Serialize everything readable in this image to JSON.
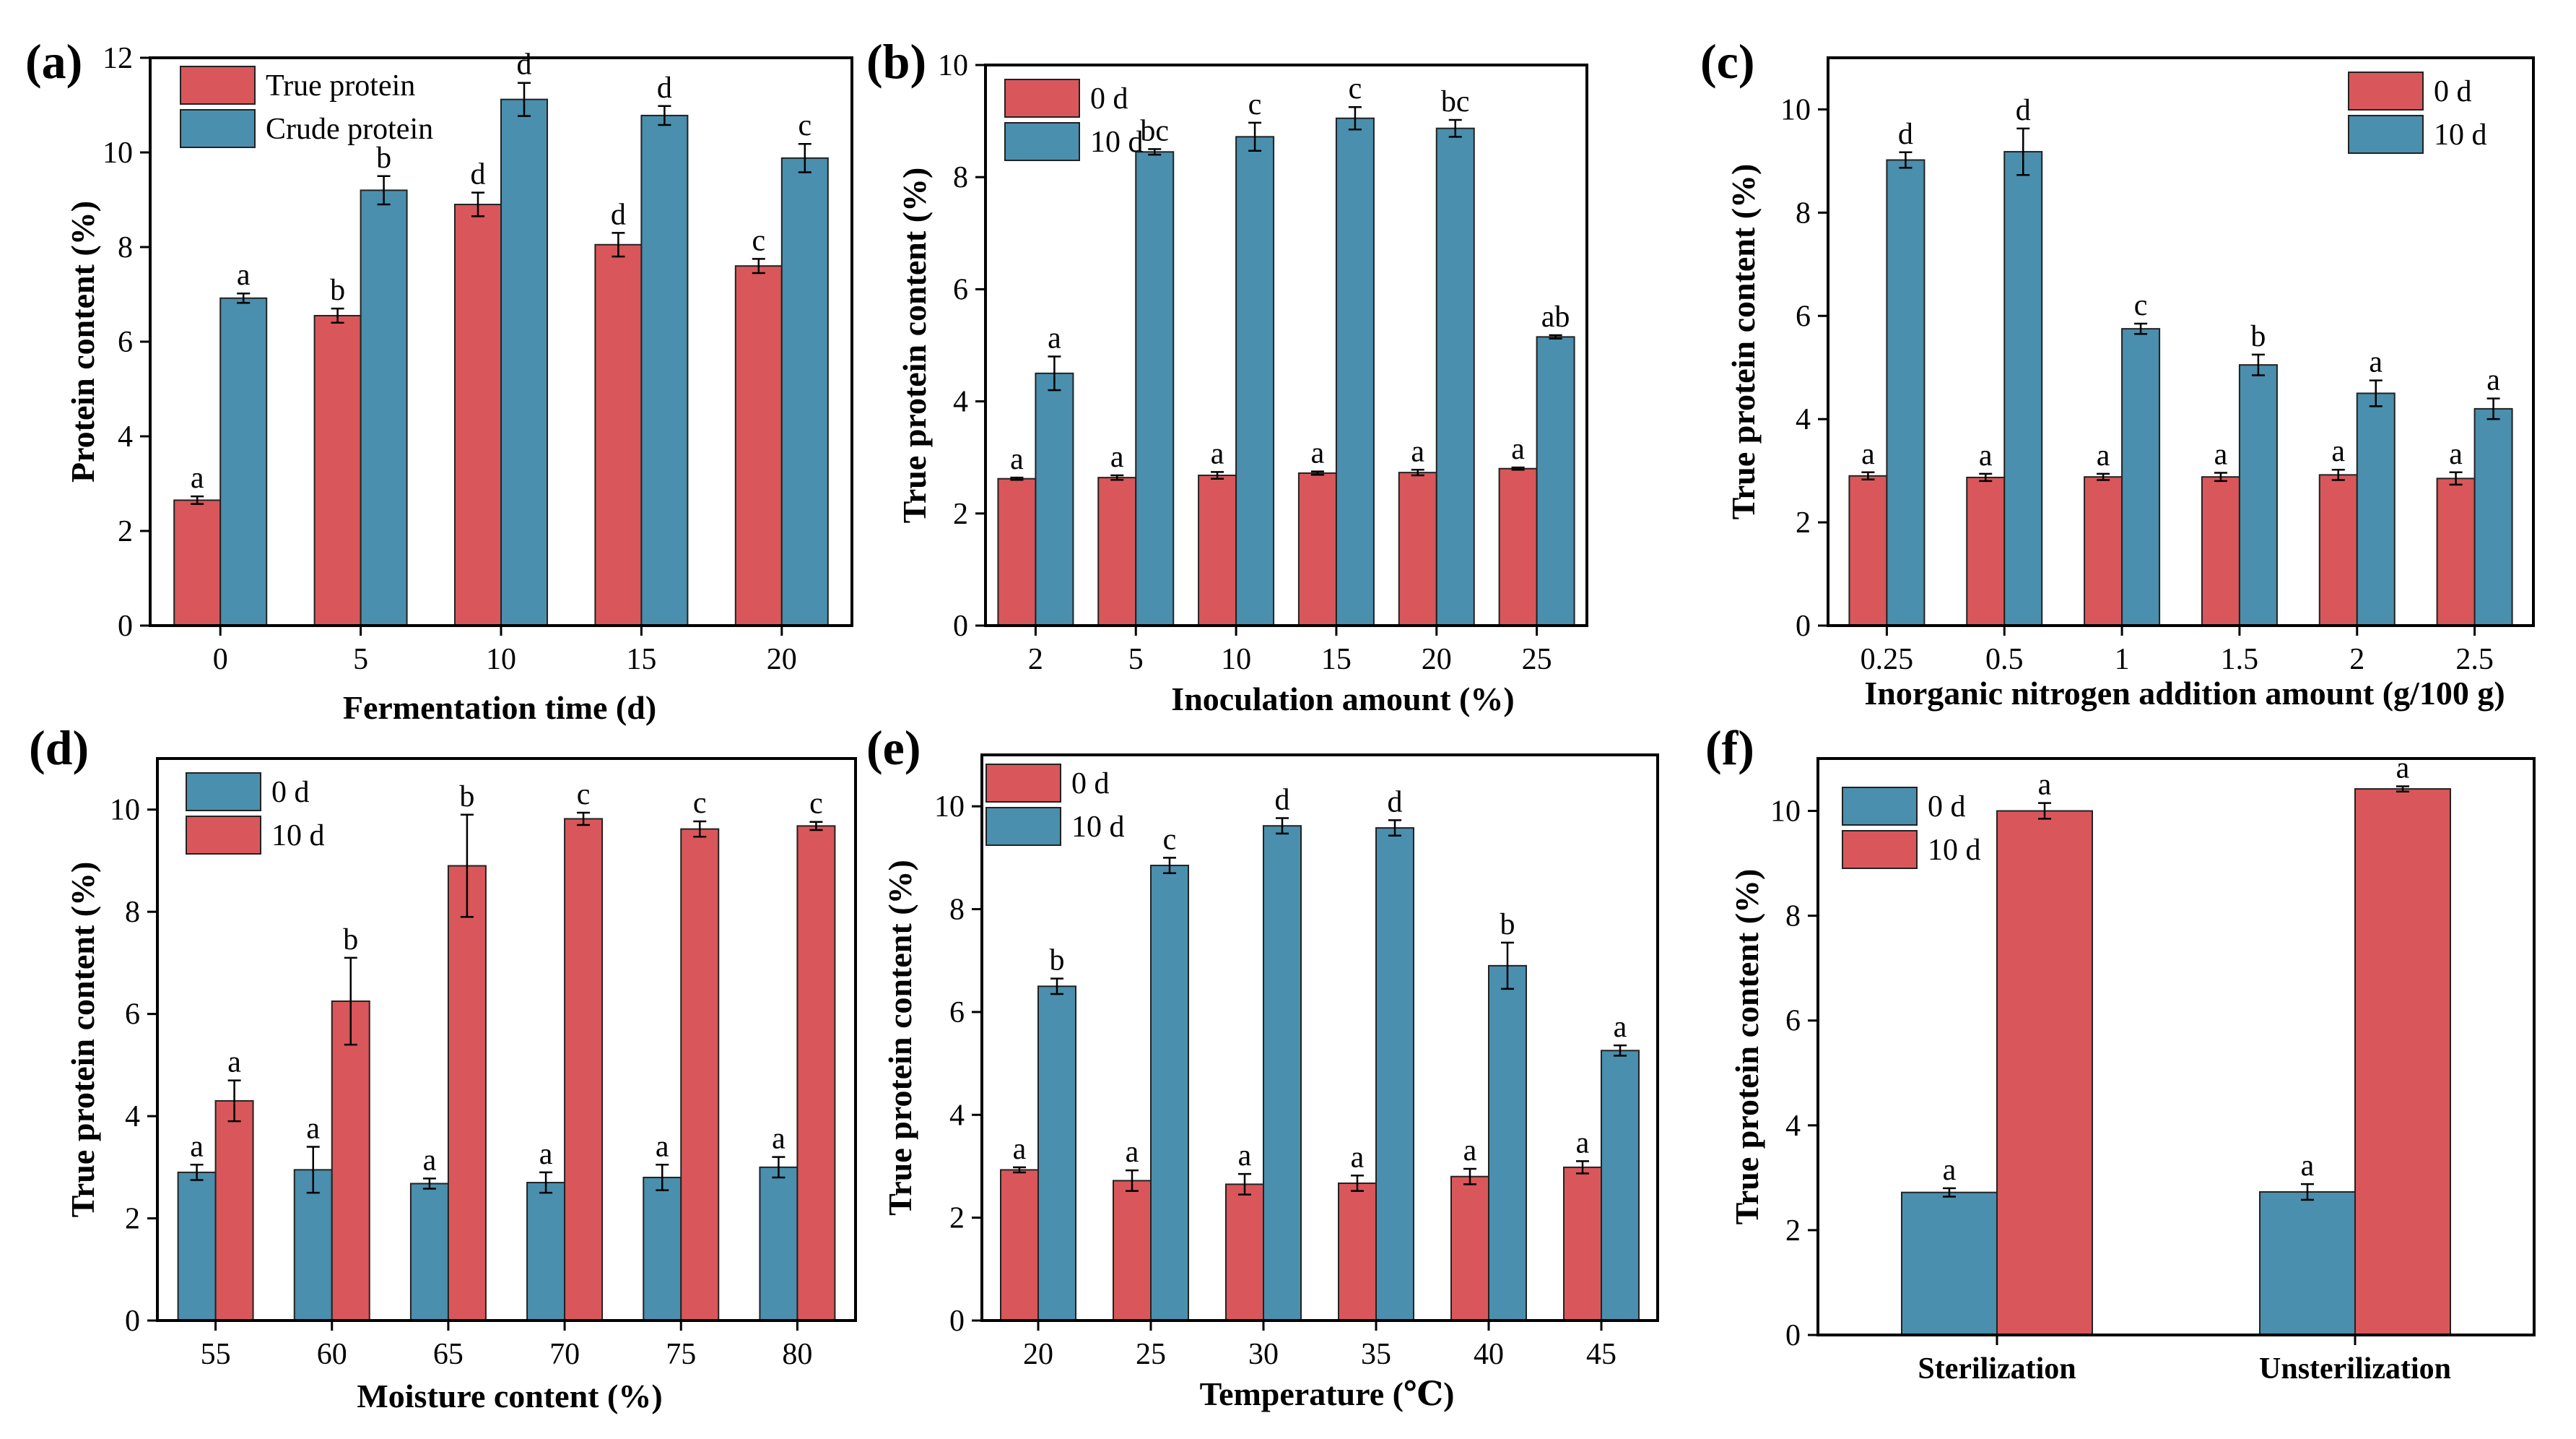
{
  "colors": {
    "red": "#d9575a",
    "blue": "#4a8fad",
    "edge": "#222222"
  },
  "chart_data": [
    {
      "panel": "(a)",
      "type": "bar",
      "xlabel": "Fermentation time (d)",
      "ylabel": "Protein content (%)",
      "ylim": [
        0,
        12
      ],
      "yticks": [
        "0",
        "2",
        "4",
        "6",
        "8",
        "10",
        "12"
      ],
      "categories": [
        "0",
        "5",
        "10",
        "15",
        "20"
      ],
      "legend_position": "top-left",
      "series": [
        {
          "name": "True protein",
          "color": "red",
          "values": [
            2.65,
            6.55,
            8.9,
            8.05,
            7.6
          ],
          "errors": [
            0.08,
            0.15,
            0.25,
            0.25,
            0.15
          ],
          "labels": [
            "a",
            "b",
            "d",
            "d",
            "c"
          ]
        },
        {
          "name": "Crude protein",
          "color": "blue",
          "values": [
            6.92,
            9.2,
            11.12,
            10.78,
            9.88
          ],
          "errors": [
            0.1,
            0.3,
            0.35,
            0.2,
            0.3
          ],
          "labels": [
            "a",
            "b",
            "d",
            "d",
            "c"
          ]
        }
      ]
    },
    {
      "panel": "(b)",
      "type": "bar",
      "xlabel": "Inoculation amount (%)",
      "ylabel": "True protein content (%)",
      "ylim": [
        0,
        10
      ],
      "yticks": [
        "0",
        "2",
        "4",
        "6",
        "8",
        "10"
      ],
      "categories": [
        "2",
        "5",
        "10",
        "15",
        "20",
        "25"
      ],
      "legend_position": "top-left",
      "series": [
        {
          "name": "0 d",
          "color": "red",
          "values": [
            2.62,
            2.64,
            2.68,
            2.72,
            2.73,
            2.8
          ],
          "errors": [
            0.02,
            0.04,
            0.06,
            0.03,
            0.05,
            0.02
          ],
          "labels": [
            "a",
            "a",
            "a",
            "a",
            "a",
            "a"
          ]
        },
        {
          "name": "10 d",
          "color": "blue",
          "values": [
            4.5,
            8.45,
            8.72,
            9.05,
            8.87,
            5.15
          ],
          "errors": [
            0.3,
            0.05,
            0.25,
            0.2,
            0.15,
            0.03
          ],
          "labels": [
            "a",
            "bc",
            "c",
            "c",
            "bc",
            "ab"
          ]
        }
      ]
    },
    {
      "panel": "(c)",
      "type": "bar",
      "xlabel": "Inorganic nitrogen addition amount (g/100 g)",
      "ylabel": "True protein content (%)",
      "ylim": [
        0,
        11
      ],
      "yticks": [
        "0",
        "2",
        "4",
        "6",
        "8",
        "10"
      ],
      "categories": [
        "0.25",
        "0.5",
        "1",
        "1.5",
        "2",
        "2.5"
      ],
      "legend_position": "top-right",
      "series": [
        {
          "name": "0 d",
          "color": "red",
          "values": [
            2.9,
            2.87,
            2.88,
            2.88,
            2.92,
            2.85
          ],
          "errors": [
            0.07,
            0.07,
            0.06,
            0.08,
            0.1,
            0.12
          ],
          "labels": [
            "a",
            "a",
            "a",
            "a",
            "a",
            "a"
          ]
        },
        {
          "name": "10 d",
          "color": "blue",
          "values": [
            9.02,
            9.18,
            5.75,
            5.05,
            4.5,
            4.2
          ],
          "errors": [
            0.15,
            0.45,
            0.1,
            0.2,
            0.25,
            0.2
          ],
          "labels": [
            "d",
            "d",
            "c",
            "b",
            "a",
            "a"
          ]
        }
      ]
    },
    {
      "panel": "(d)",
      "type": "bar",
      "xlabel": "Moisture content (%)",
      "ylabel": "True protein content (%)",
      "ylim": [
        0,
        11
      ],
      "yticks": [
        "0",
        "2",
        "4",
        "6",
        "8",
        "10"
      ],
      "categories": [
        "55",
        "60",
        "65",
        "70",
        "75",
        "80"
      ],
      "legend_position": "top-left",
      "series": [
        {
          "name": "0 d",
          "color": "blue",
          "values": [
            2.9,
            2.95,
            2.68,
            2.7,
            2.8,
            3.0
          ],
          "errors": [
            0.15,
            0.45,
            0.1,
            0.2,
            0.25,
            0.2
          ],
          "labels": [
            "a",
            "a",
            "a",
            "a",
            "a",
            "a"
          ]
        },
        {
          "name": "10 d",
          "color": "red",
          "values": [
            4.3,
            6.25,
            8.9,
            9.82,
            9.62,
            9.68
          ],
          "errors": [
            0.4,
            0.85,
            1.0,
            0.12,
            0.15,
            0.08
          ],
          "labels": [
            "a",
            "b",
            "b",
            "c",
            "c",
            "c"
          ]
        }
      ]
    },
    {
      "panel": "(e)",
      "type": "bar",
      "xlabel": "Temperature (℃)",
      "ylabel": "True protein content (%)",
      "ylim": [
        0,
        11
      ],
      "yticks": [
        "0",
        "2",
        "4",
        "6",
        "8",
        "10"
      ],
      "categories": [
        "20",
        "25",
        "30",
        "35",
        "40",
        "45"
      ],
      "legend_position": "top-left",
      "series": [
        {
          "name": "0 d",
          "color": "red",
          "values": [
            2.93,
            2.72,
            2.65,
            2.67,
            2.8,
            2.98
          ],
          "errors": [
            0.05,
            0.2,
            0.2,
            0.15,
            0.15,
            0.12
          ],
          "labels": [
            "a",
            "a",
            "a",
            "a",
            "a",
            "a"
          ]
        },
        {
          "name": "10 d",
          "color": "blue",
          "values": [
            6.5,
            8.85,
            9.62,
            9.58,
            6.9,
            5.25
          ],
          "errors": [
            0.15,
            0.15,
            0.15,
            0.15,
            0.45,
            0.1
          ],
          "labels": [
            "b",
            "c",
            "d",
            "d",
            "b",
            "a"
          ]
        }
      ]
    },
    {
      "panel": "(f)",
      "type": "bar",
      "xlabel": "",
      "ylabel": "True protein content (%)",
      "ylim": [
        0,
        11
      ],
      "yticks": [
        "0",
        "2",
        "4",
        "6",
        "8",
        "10"
      ],
      "categories": [
        "Sterilization",
        "Unsterilization"
      ],
      "legend_position": "top-left",
      "series": [
        {
          "name": "0 d",
          "color": "blue",
          "values": [
            2.72,
            2.73
          ],
          "errors": [
            0.08,
            0.15
          ],
          "labels": [
            "a",
            "a"
          ]
        },
        {
          "name": "10 d",
          "color": "red",
          "values": [
            10.0,
            10.42
          ],
          "errors": [
            0.15,
            0.05
          ],
          "labels": [
            "a",
            "a"
          ]
        }
      ]
    }
  ]
}
